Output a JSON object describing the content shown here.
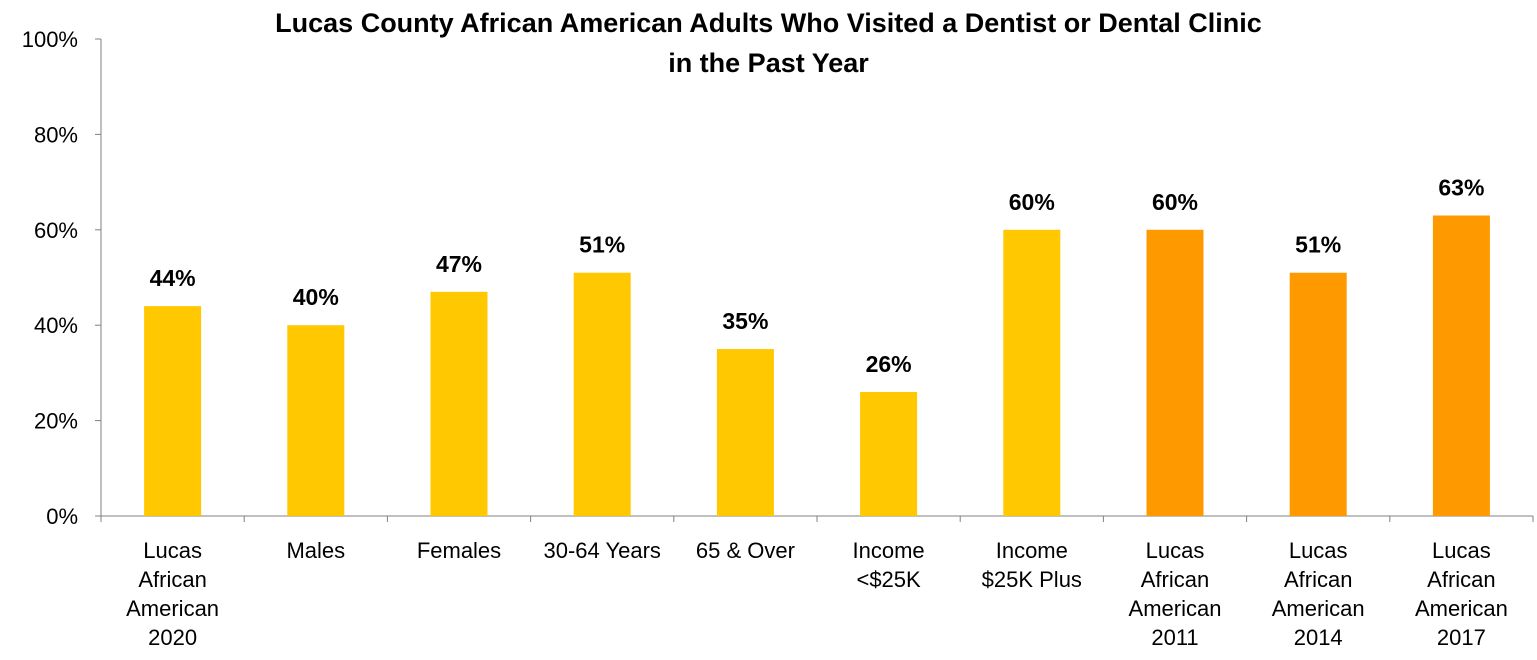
{
  "chart_data": {
    "type": "bar",
    "title_lines": [
      "Lucas County African American Adults Who Visited a Dentist or Dental Clinic",
      "in the Past Year"
    ],
    "categories": [
      [
        "Lucas",
        "African",
        "American",
        "2020"
      ],
      [
        "Males"
      ],
      [
        "Females"
      ],
      [
        "30-64 Years"
      ],
      [
        "65 & Over"
      ],
      [
        "Income",
        "<$25K"
      ],
      [
        "Income",
        "$25K Plus"
      ],
      [
        "Lucas",
        "African",
        "American",
        "2011"
      ],
      [
        "Lucas",
        "African",
        "American",
        "2014"
      ],
      [
        "Lucas",
        "African",
        "American",
        "2017"
      ]
    ],
    "values": [
      44,
      40,
      47,
      51,
      35,
      26,
      60,
      60,
      51,
      63
    ],
    "data_labels": [
      "44%",
      "40%",
      "47%",
      "51%",
      "35%",
      "26%",
      "60%",
      "60%",
      "51%",
      "63%"
    ],
    "bar_colors": [
      "#FFC800",
      "#FFC800",
      "#FFC800",
      "#FFC800",
      "#FFC800",
      "#FFC800",
      "#FFC800",
      "#FF9900",
      "#FF9900",
      "#FF9900"
    ],
    "yticks": [
      0,
      20,
      40,
      60,
      80,
      100
    ],
    "ytick_labels": [
      "0%",
      "20%",
      "40%",
      "60%",
      "80%",
      "100%"
    ],
    "ylim": [
      0,
      100
    ],
    "grid": false,
    "legend": "none"
  }
}
